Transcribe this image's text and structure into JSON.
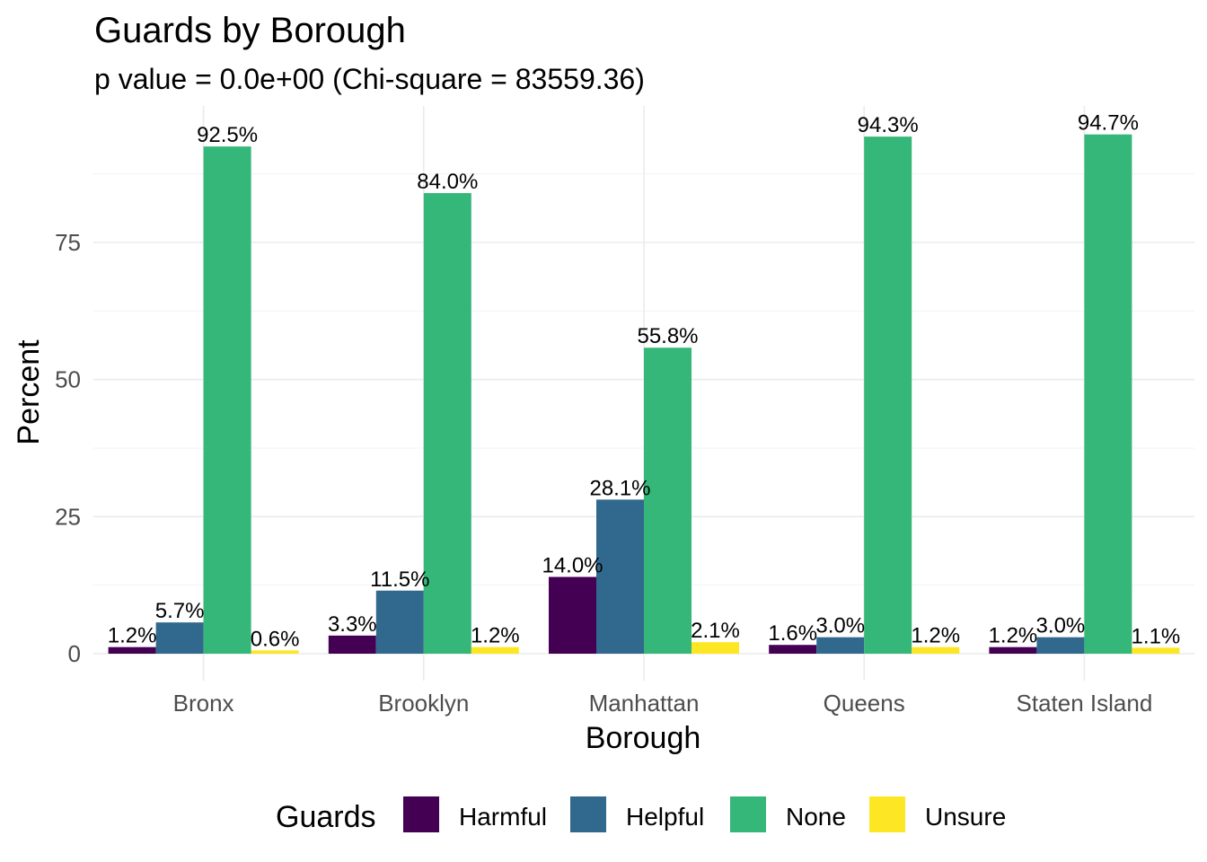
{
  "chart_data": {
    "type": "bar",
    "title": "Guards by Borough",
    "subtitle": "p value = 0.0e+00 (Chi-square = 83559.36)",
    "xlabel": "Borough",
    "ylabel": "Percent",
    "ylim": [
      0,
      98
    ],
    "yticks": [
      0,
      25,
      50,
      75
    ],
    "categories": [
      "Bronx",
      "Brooklyn",
      "Manhattan",
      "Queens",
      "Staten Island"
    ],
    "legend": {
      "title": "Guards",
      "position": "bottom"
    },
    "grid": true,
    "series": [
      {
        "name": "Harmful",
        "color": "#440154",
        "values": [
          1.2,
          3.3,
          14.0,
          1.6,
          1.2
        ],
        "labels": [
          "1.2%",
          "3.3%",
          "14.0%",
          "1.6%",
          "1.2%"
        ]
      },
      {
        "name": "Helpful",
        "color": "#31688E",
        "values": [
          5.7,
          11.5,
          28.1,
          3.0,
          3.0
        ],
        "labels": [
          "5.7%",
          "11.5%",
          "28.1%",
          "3.0%",
          "3.0%"
        ]
      },
      {
        "name": "None",
        "color": "#35B779",
        "values": [
          92.5,
          84.0,
          55.8,
          94.3,
          94.7
        ],
        "labels": [
          "92.5%",
          "84.0%",
          "55.8%",
          "94.3%",
          "94.7%"
        ]
      },
      {
        "name": "Unsure",
        "color": "#FDE725",
        "values": [
          0.6,
          1.2,
          2.1,
          1.2,
          1.1
        ],
        "labels": [
          "0.6%",
          "1.2%",
          "2.1%",
          "1.2%",
          "1.1%"
        ]
      }
    ]
  }
}
